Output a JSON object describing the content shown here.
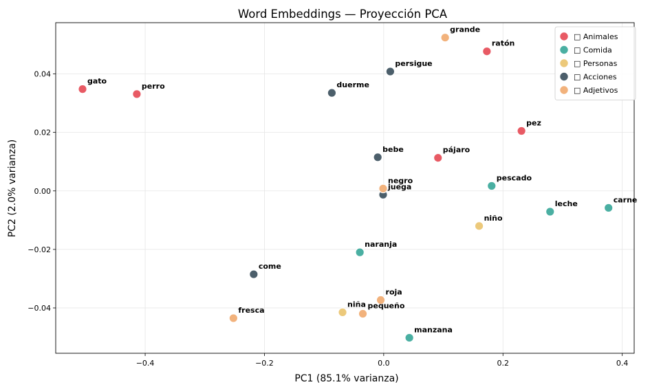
{
  "chart_data": {
    "type": "scatter",
    "title": "Word Embeddings — Proyección PCA",
    "xlabel": "PC1 (85.1% varianza)",
    "ylabel": "PC2 (2.0% varianza)",
    "xlim": [
      -0.55,
      0.42
    ],
    "ylim": [
      -0.0555,
      0.0575
    ],
    "xticks": [
      -0.4,
      -0.2,
      0.0,
      0.2,
      0.4
    ],
    "xtick_labels": [
      "−0.4",
      "−0.2",
      "0.0",
      "0.2",
      "0.4"
    ],
    "yticks": [
      -0.04,
      -0.02,
      0.0,
      0.02,
      0.04
    ],
    "ytick_labels": [
      "−0.04",
      "−0.02",
      "0.00",
      "0.02",
      "0.04"
    ],
    "grid": true,
    "legend_position": "top-right",
    "series": [
      {
        "name": "Animales",
        "legend_label": "□ Animales",
        "color": "#e85a64",
        "points": [
          {
            "label": "gato",
            "x": -0.505,
            "y": 0.0348
          },
          {
            "label": "perro",
            "x": -0.414,
            "y": 0.0331
          },
          {
            "label": "ratón",
            "x": 0.173,
            "y": 0.0477
          },
          {
            "label": "pez",
            "x": 0.231,
            "y": 0.0205
          },
          {
            "label": "pájaro",
            "x": 0.091,
            "y": 0.0113
          }
        ]
      },
      {
        "name": "Comida",
        "legend_label": "□ Comida",
        "color": "#4aafa2",
        "points": [
          {
            "label": "pescado",
            "x": 0.181,
            "y": 0.0017
          },
          {
            "label": "carne",
            "x": 0.377,
            "y": -0.0058
          },
          {
            "label": "leche",
            "x": 0.279,
            "y": -0.0071
          },
          {
            "label": "naranja",
            "x": -0.04,
            "y": -0.021
          },
          {
            "label": "manzana",
            "x": 0.043,
            "y": -0.0502
          }
        ]
      },
      {
        "name": "Personas",
        "legend_label": "□ Personas",
        "color": "#ecc97b",
        "points": [
          {
            "label": "niño",
            "x": 0.16,
            "y": -0.012
          },
          {
            "label": "niña",
            "x": -0.069,
            "y": -0.0415
          }
        ]
      },
      {
        "name": "Acciones",
        "legend_label": "□ Acciones",
        "color": "#4c5f6b",
        "points": [
          {
            "label": "persigue",
            "x": 0.011,
            "y": 0.0408
          },
          {
            "label": "duerme",
            "x": -0.087,
            "y": 0.0335
          },
          {
            "label": "bebe",
            "x": -0.01,
            "y": 0.0115
          },
          {
            "label": "juega",
            "x": -0.001,
            "y": -0.0013
          },
          {
            "label": "come",
            "x": -0.218,
            "y": -0.0285
          }
        ]
      },
      {
        "name": "Adjetivos",
        "legend_label": "□ Adjetivos",
        "color": "#f2b27c",
        "points": [
          {
            "label": "grande",
            "x": 0.103,
            "y": 0.0524
          },
          {
            "label": "negro",
            "x": -0.001,
            "y": 0.0008
          },
          {
            "label": "roja",
            "x": -0.005,
            "y": -0.0373
          },
          {
            "label": "pequeño",
            "x": -0.035,
            "y": -0.042
          },
          {
            "label": "fresca",
            "x": -0.252,
            "y": -0.0435
          }
        ]
      }
    ]
  }
}
